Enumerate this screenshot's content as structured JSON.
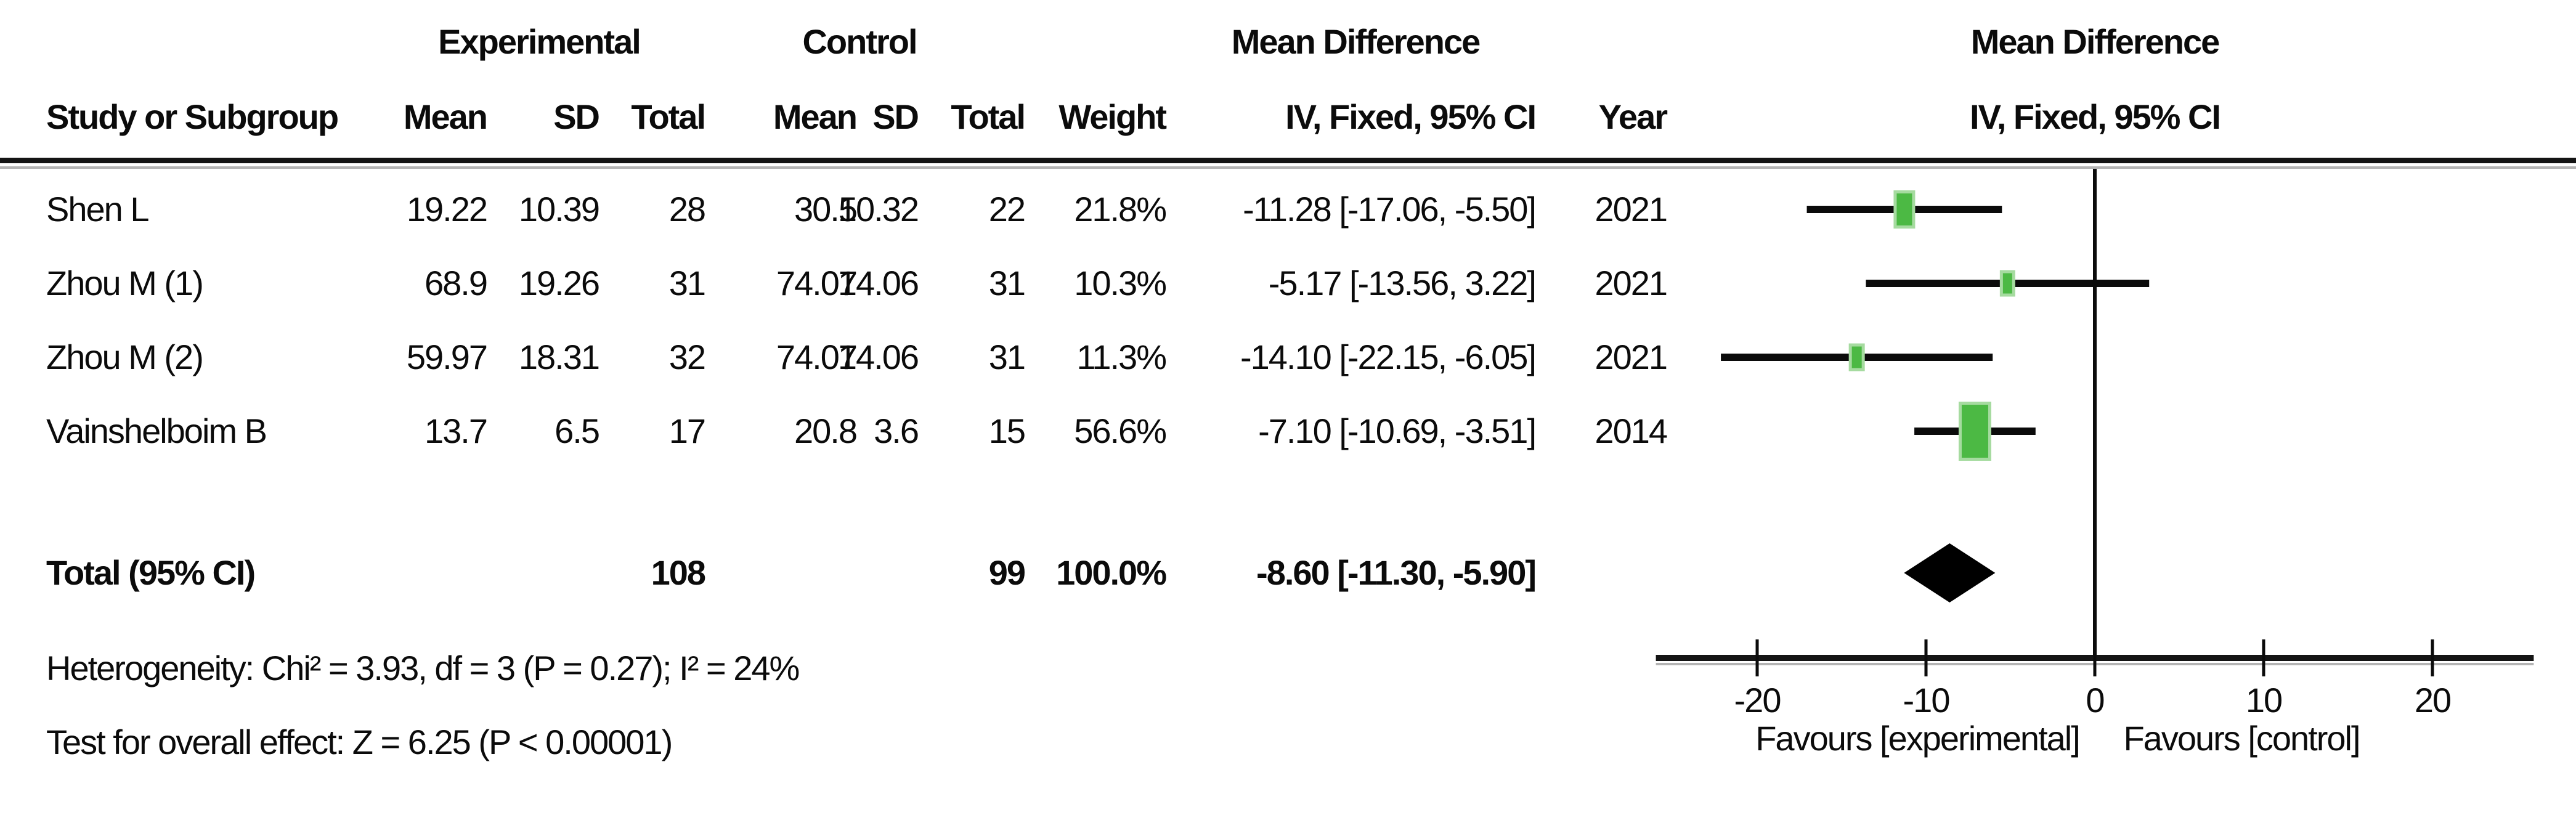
{
  "figure": {
    "group_headers": {
      "experimental": "Experimental",
      "control": "Control",
      "md_table": "Mean Difference",
      "md_plot": "Mean Difference"
    },
    "col_headers": {
      "study": "Study or Subgroup",
      "mean": "Mean",
      "sd": "SD",
      "total": "Total",
      "mean2": "Mean",
      "sd2": "SD",
      "total2": "Total",
      "weight": "Weight",
      "ivci": "IV, Fixed, 95% CI",
      "year": "Year",
      "ivci_plot": "IV, Fixed, 95% CI"
    },
    "studies": [
      {
        "study": "Shen L",
        "mean_e": "19.22",
        "sd_e": "10.39",
        "total_e": "28",
        "mean_c": "30.5",
        "sd_c": "10.32",
        "total_c": "22",
        "weight": "21.8%",
        "estimate": "-11.28 [-17.06, -5.50]",
        "year": "2021"
      },
      {
        "study": "Zhou M (1)",
        "mean_e": "68.9",
        "sd_e": "19.26",
        "total_e": "31",
        "mean_c": "74.07",
        "sd_c": "14.06",
        "total_c": "31",
        "weight": "10.3%",
        "estimate": "-5.17 [-13.56, 3.22]",
        "year": "2021"
      },
      {
        "study": "Zhou M (2)",
        "mean_e": "59.97",
        "sd_e": "18.31",
        "total_e": "32",
        "mean_c": "74.07",
        "sd_c": "14.06",
        "total_c": "31",
        "weight": "11.3%",
        "estimate": "-14.10 [-22.15, -6.05]",
        "year": "2021"
      },
      {
        "study": "Vainshelboim B",
        "mean_e": "13.7",
        "sd_e": "6.5",
        "total_e": "17",
        "mean_c": "20.8",
        "sd_c": "3.6",
        "total_c": "15",
        "weight": "56.6%",
        "estimate": "-7.10 [-10.69, -3.51]",
        "year": "2014"
      }
    ],
    "total_row": {
      "label": "Total (95% CI)",
      "total_e": "108",
      "total_c": "99",
      "weight": "100.0%",
      "estimate": "-8.60 [-11.30, -5.90]"
    },
    "footnotes": {
      "heterogeneity": "Heterogeneity: Chi² = 3.93, df = 3 (P = 0.27); I² = 24%",
      "overall_effect": "Test for overall effect: Z = 6.25 (P < 0.00001)"
    }
  },
  "chart_data": {
    "type": "forest",
    "effect_measure": "Mean Difference",
    "model": "IV, Fixed, 95% CI",
    "x_axis": {
      "ticks": [
        -20,
        -10,
        0,
        10,
        20
      ],
      "min": -26,
      "max": 26,
      "zero_line": 0
    },
    "studies": [
      {
        "name": "Shen L",
        "md": -11.28,
        "ci_lower": -17.06,
        "ci_upper": -5.5,
        "weight_pct": 21.8,
        "year": 2021
      },
      {
        "name": "Zhou M (1)",
        "md": -5.17,
        "ci_lower": -13.56,
        "ci_upper": 3.22,
        "weight_pct": 10.3,
        "year": 2021
      },
      {
        "name": "Zhou M (2)",
        "md": -14.1,
        "ci_lower": -22.15,
        "ci_upper": -6.05,
        "weight_pct": 11.3,
        "year": 2021
      },
      {
        "name": "Vainshelboim B",
        "md": -7.1,
        "ci_lower": -10.69,
        "ci_upper": -3.51,
        "weight_pct": 56.6,
        "year": 2014
      }
    ],
    "total": {
      "label": "Total (95% CI)",
      "md": -8.6,
      "ci_lower": -11.3,
      "ci_upper": -5.9,
      "weight_pct": 100.0
    },
    "favours_left": "Favours [experimental]",
    "favours_right": "Favours [control]",
    "marker_color": "#4cb944",
    "marker_halo_color": "#a6dba0",
    "diamond_color": "#000000",
    "line_color": "#0b0b0b"
  }
}
